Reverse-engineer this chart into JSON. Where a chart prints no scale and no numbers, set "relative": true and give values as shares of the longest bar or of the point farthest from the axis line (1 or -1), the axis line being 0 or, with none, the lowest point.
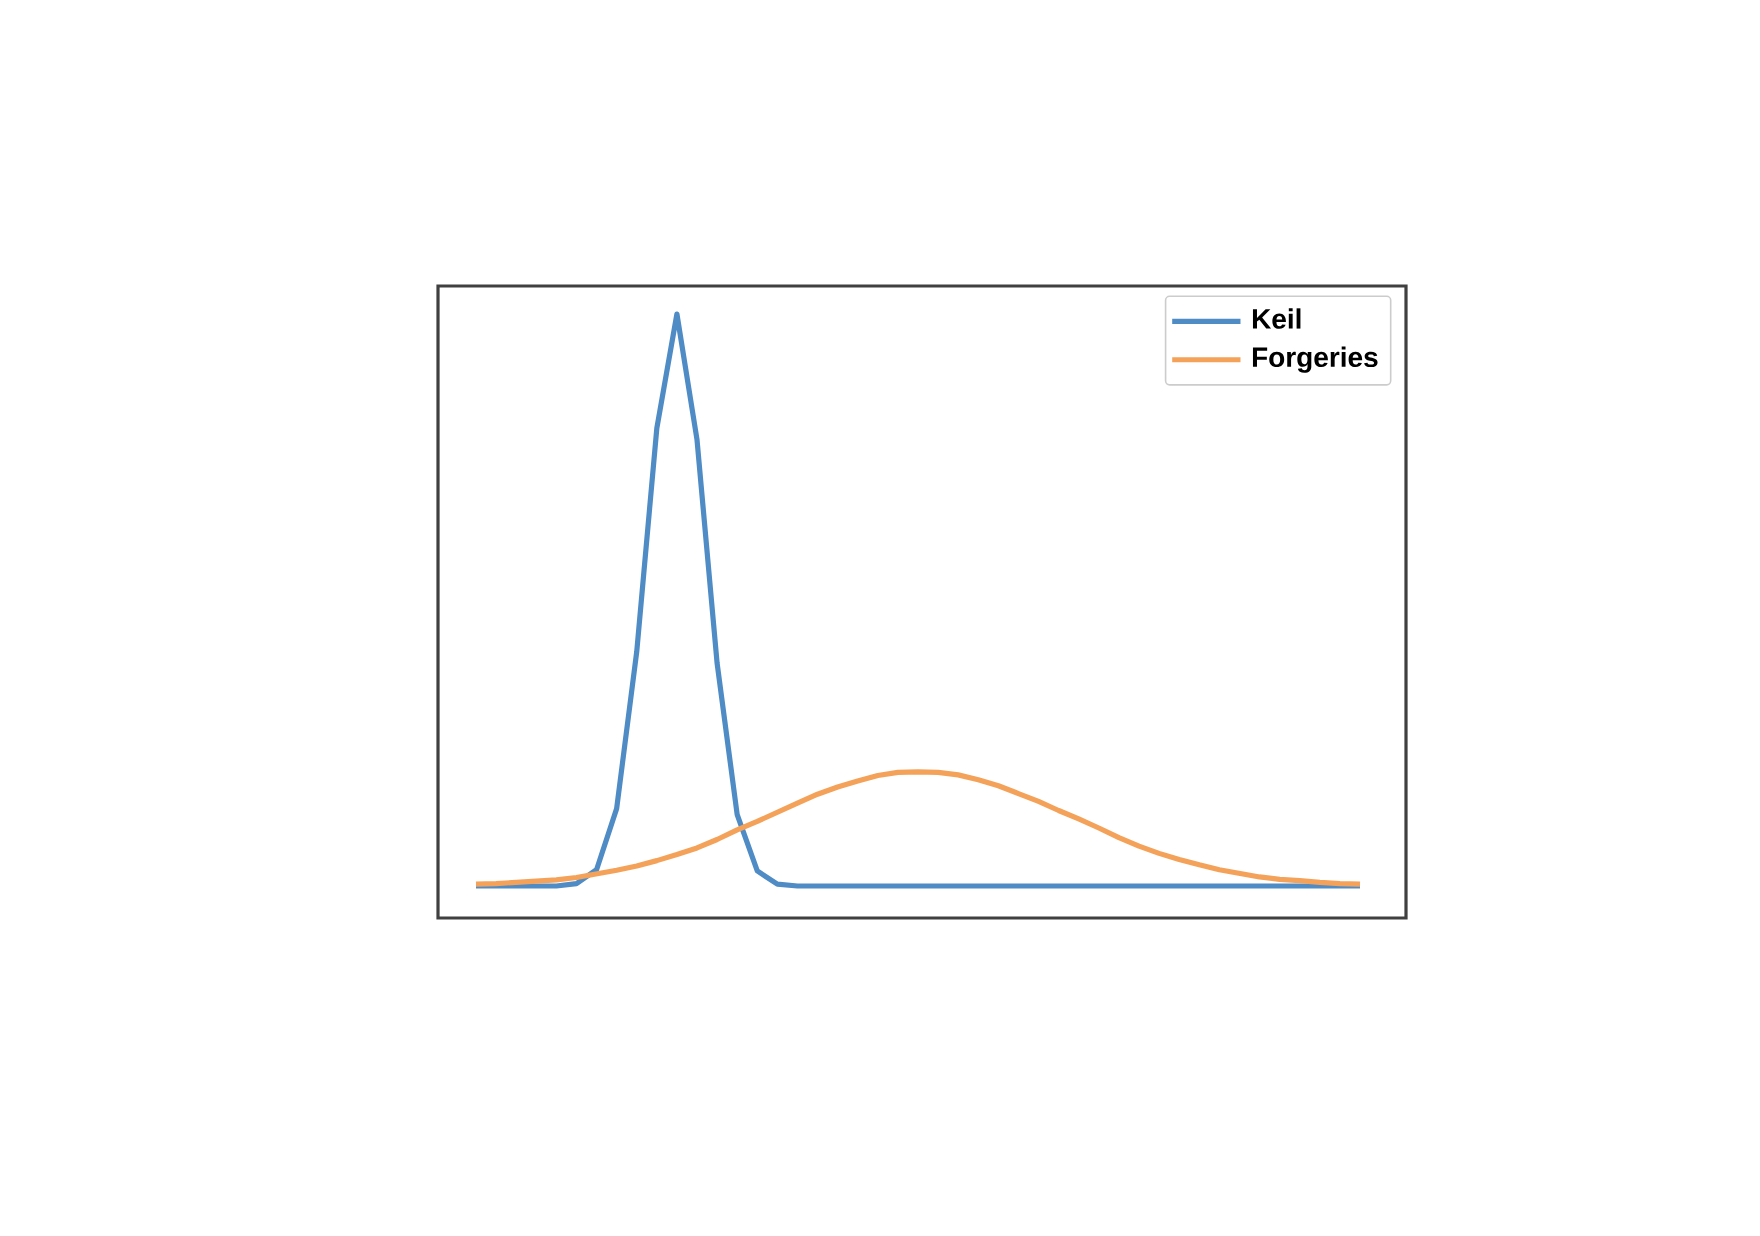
{
  "chart_data": {
    "type": "line",
    "relative": true,
    "legend": "top right",
    "categories": [
      null,
      null,
      null,
      null,
      null,
      null,
      null,
      null,
      null,
      null,
      null,
      null,
      null,
      null,
      null,
      null,
      null,
      null,
      null,
      null,
      null,
      null,
      null,
      null,
      null,
      null,
      null,
      null,
      null,
      null,
      null,
      null,
      null,
      null,
      null,
      null,
      null,
      null,
      null,
      null,
      null,
      null,
      null,
      null,
      null
    ],
    "series": [
      {
        "name": "Keil",
        "color": "#4f8bc4",
        "values": [
          0.053,
          0.053,
          0.053,
          0.053,
          0.053,
          0.057,
          0.08,
          0.181,
          0.441,
          0.811,
          1,
          0.792,
          0.422,
          0.171,
          0.078,
          0.056,
          0.053,
          0.053,
          0.053,
          0.053,
          0.053,
          0.053,
          0.053,
          0.053,
          0.053,
          0.053,
          0.053,
          0.053,
          0.053,
          0.053,
          0.053,
          0.053,
          0.053,
          0.053,
          0.053,
          0.053,
          0.053,
          0.053,
          0.053,
          0.053,
          0.053,
          0.053,
          0.053,
          0.053,
          0.053
        ]
      },
      {
        "name": "Forgeries",
        "color": "#f4a259",
        "values": [
          0.056,
          0.057,
          0.059,
          0.061,
          0.063,
          0.067,
          0.073,
          0.079,
          0.086,
          0.095,
          0.105,
          0.116,
          0.13,
          0.146,
          0.16,
          0.175,
          0.19,
          0.205,
          0.217,
          0.227,
          0.236,
          0.241,
          0.242,
          0.241,
          0.237,
          0.229,
          0.219,
          0.206,
          0.193,
          0.178,
          0.164,
          0.149,
          0.133,
          0.119,
          0.107,
          0.097,
          0.088,
          0.08,
          0.074,
          0.068,
          0.064,
          0.062,
          0.059,
          0.057,
          0.056
        ]
      }
    ]
  }
}
